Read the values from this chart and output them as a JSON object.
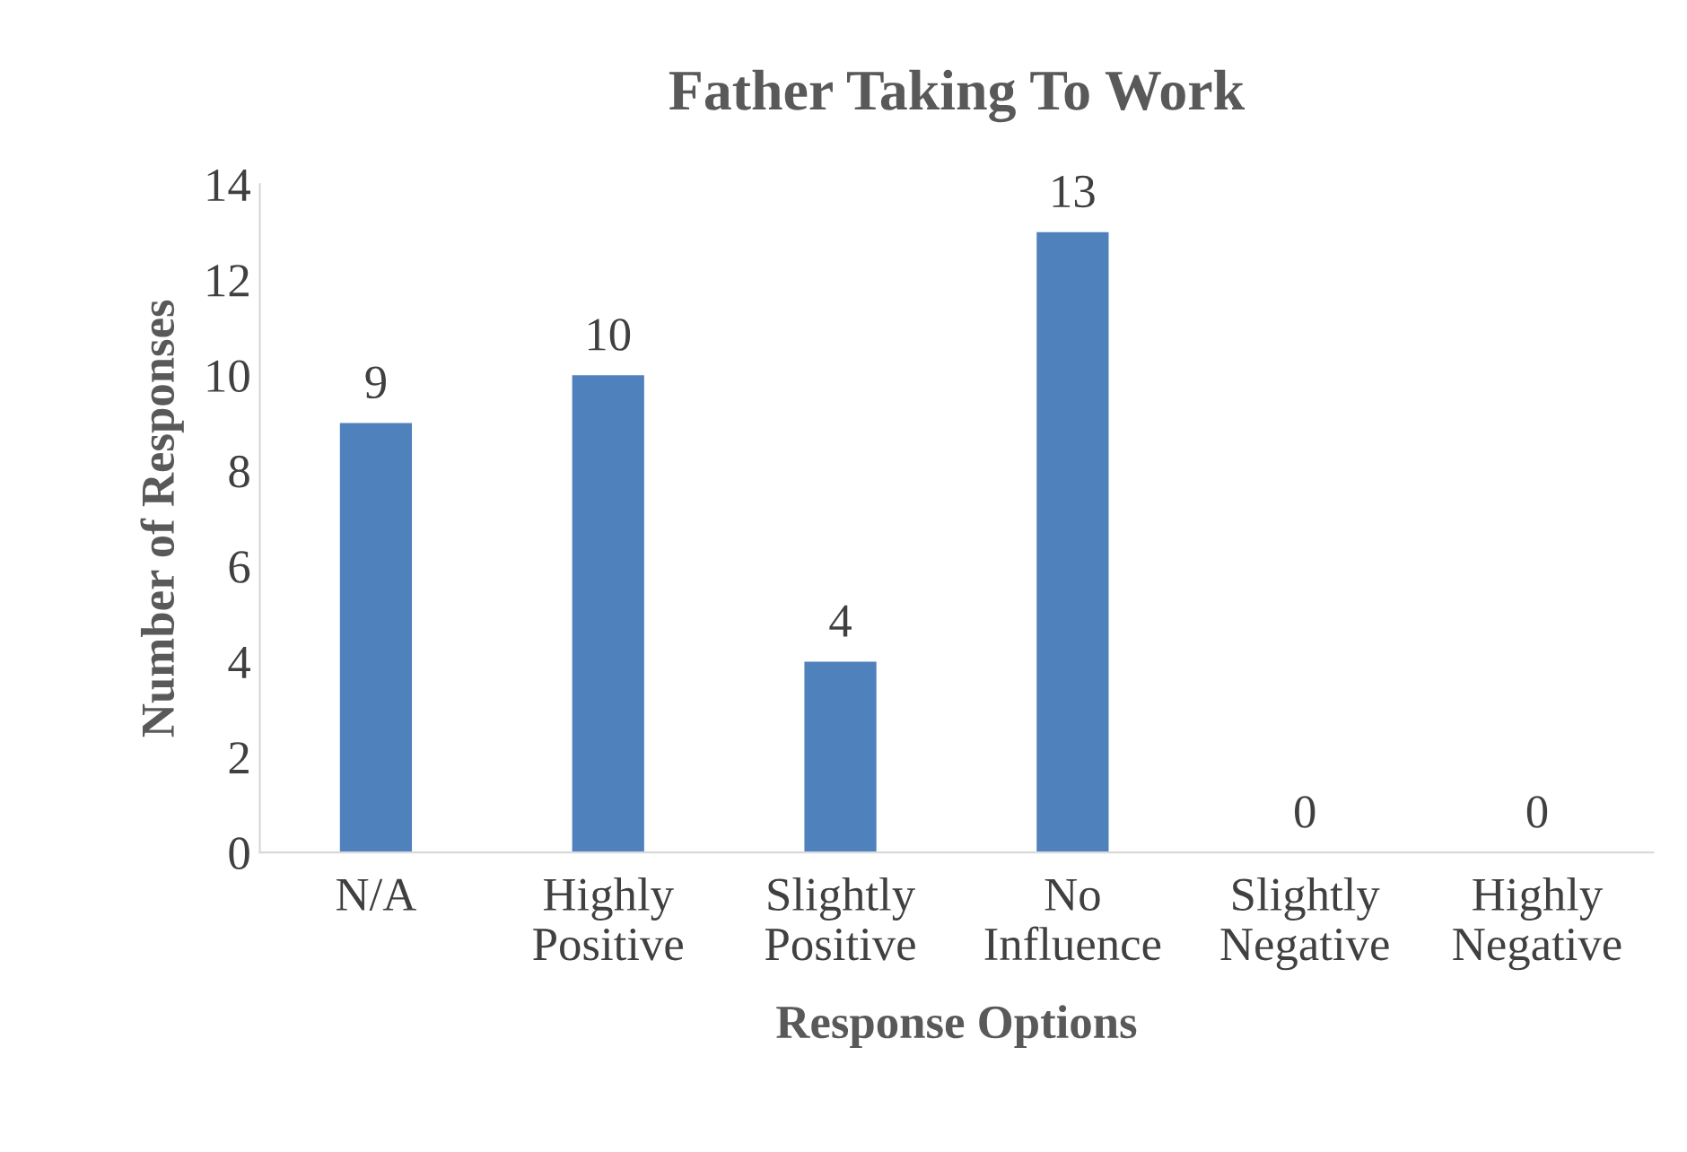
{
  "chart_data": {
    "type": "bar",
    "title": "Father Taking To Work",
    "xlabel": "Response Options",
    "ylabel": "Number of Responses",
    "categories": [
      "N/A",
      "Highly\nPositive",
      "Slightly\nPositive",
      "No\nInfluence",
      "Slightly\nNegative",
      "Highly\nNegative"
    ],
    "values": [
      9,
      10,
      4,
      13,
      0,
      0
    ],
    "color": "#4f81bd",
    "ylim": [
      0,
      14
    ],
    "yticks": [
      0,
      2,
      4,
      6,
      8,
      10,
      12,
      14
    ],
    "grid": false,
    "data_labels": true
  }
}
